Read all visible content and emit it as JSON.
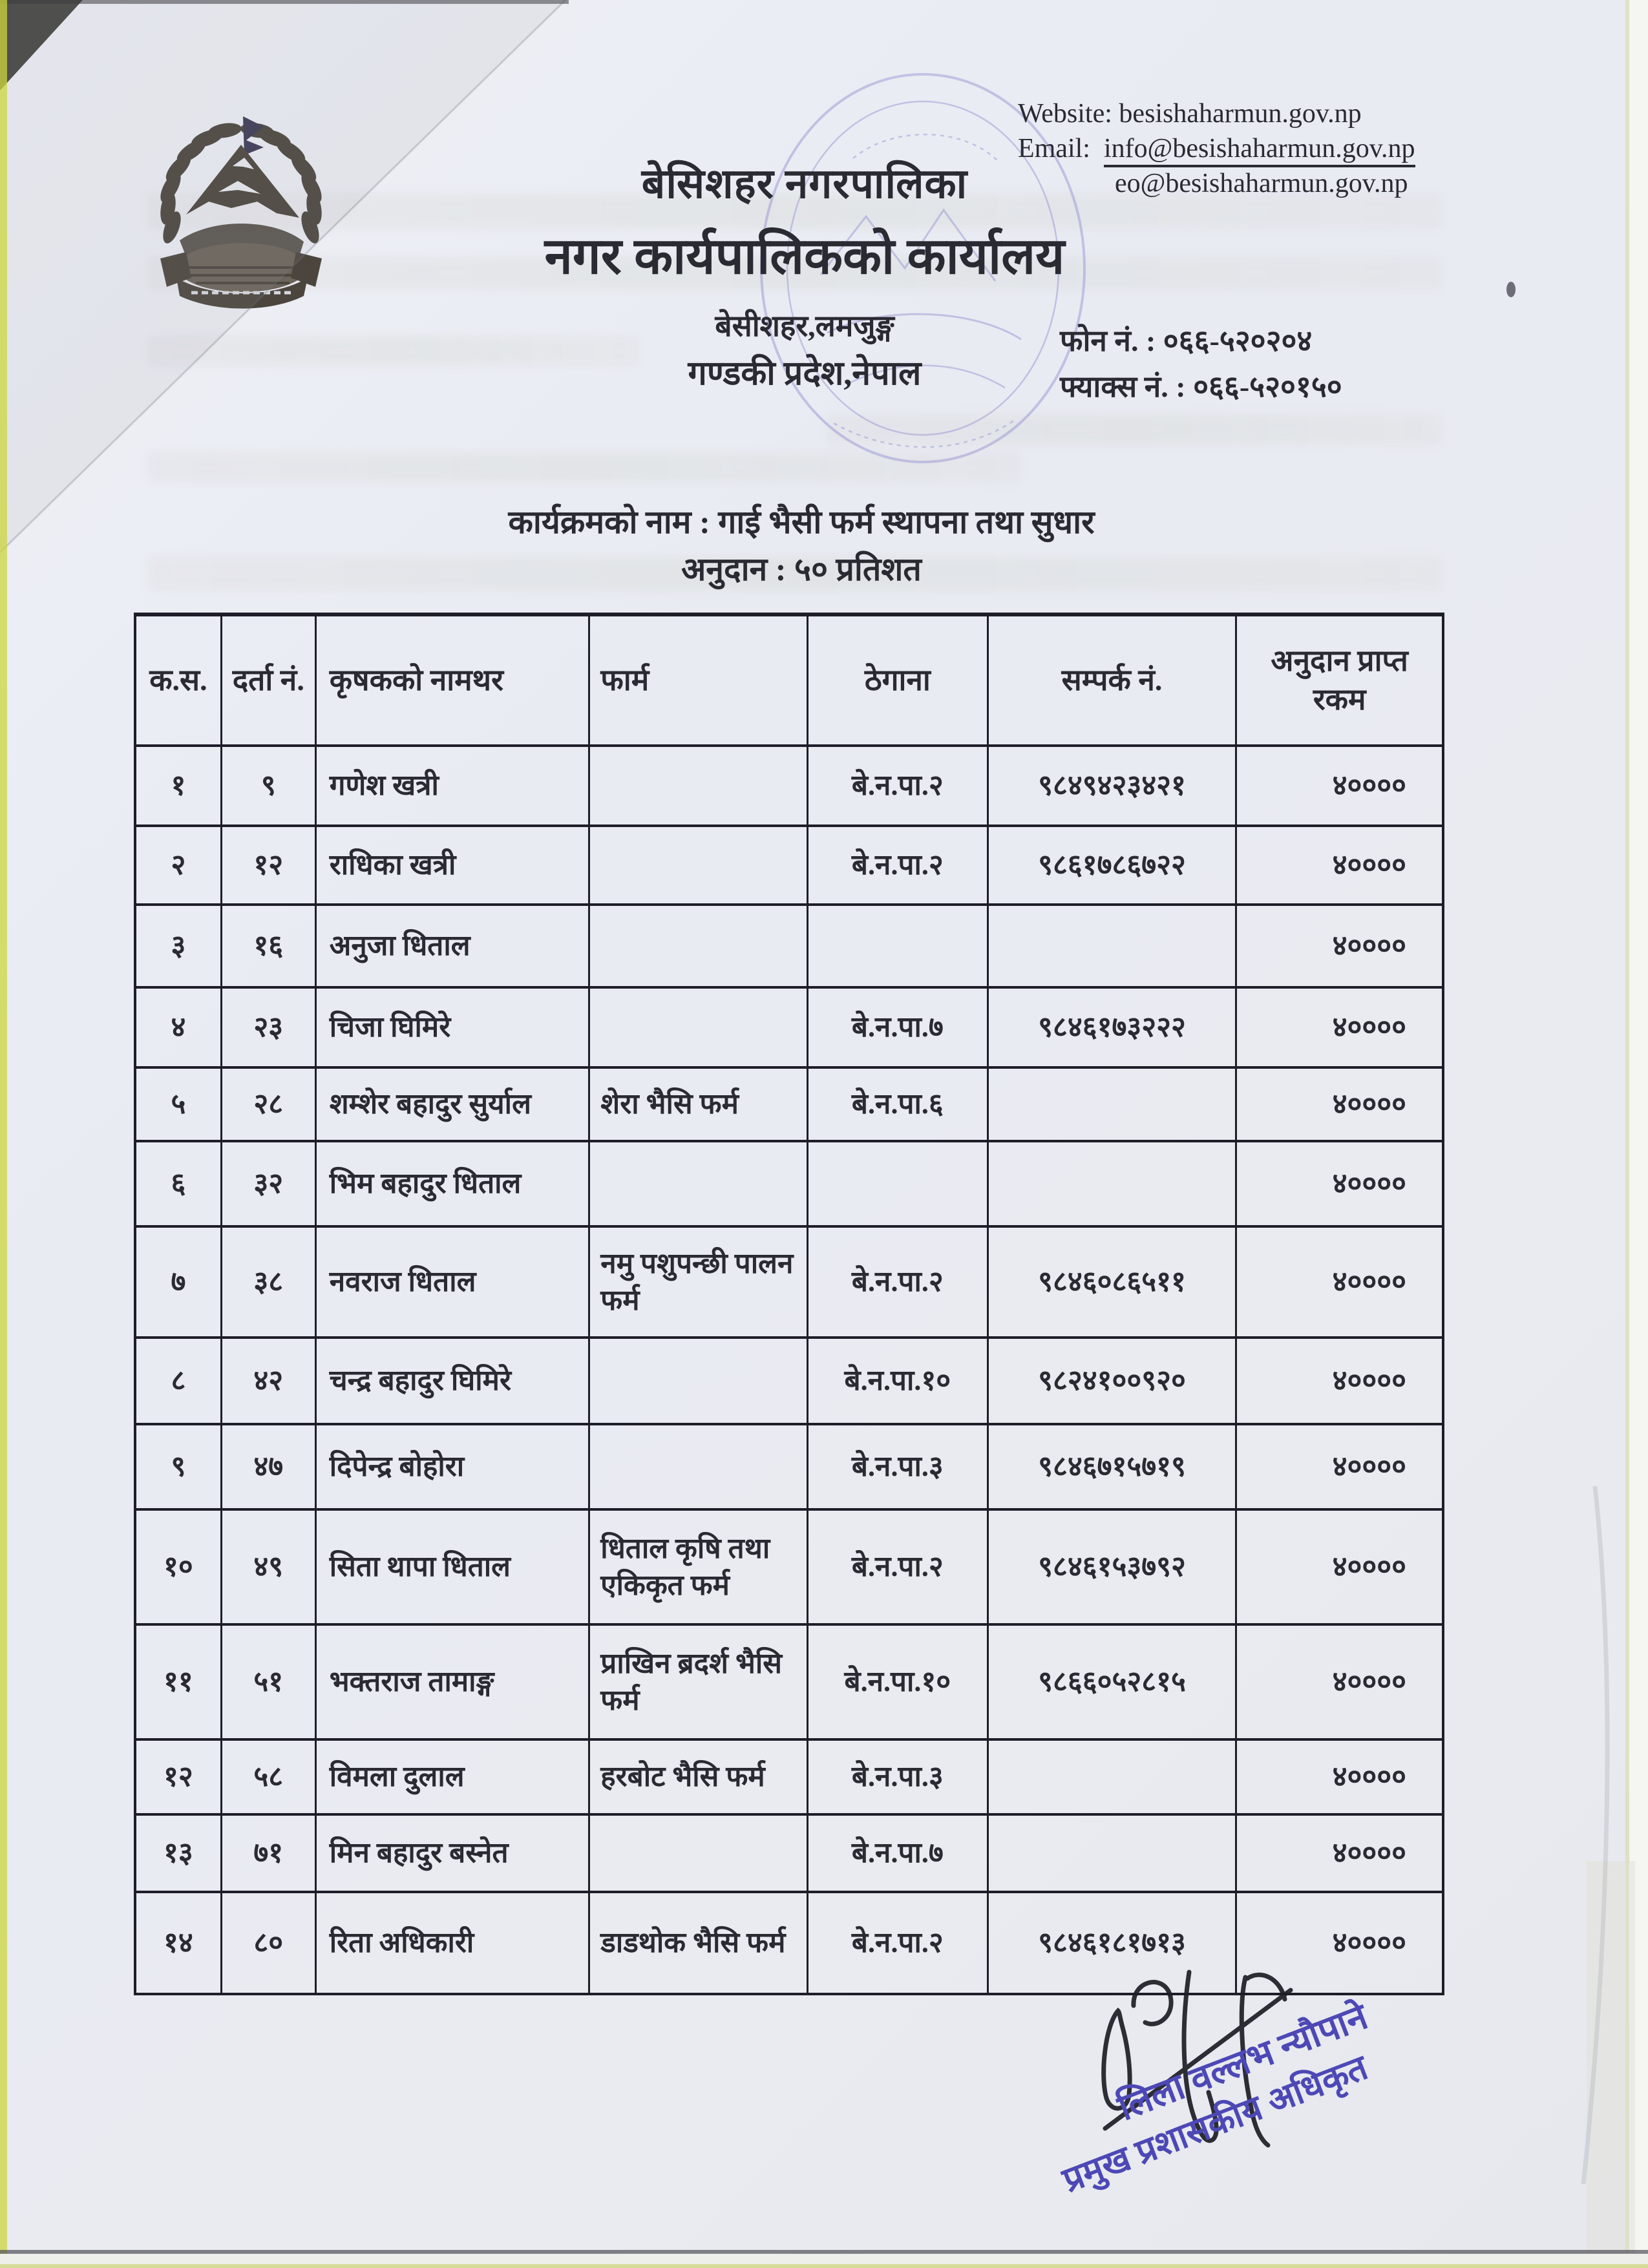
{
  "header": {
    "website_label": "Website:",
    "website": "besishaharmun.gov.np",
    "email_label": "Email:",
    "email1": "info@besishaharmun.gov.np",
    "email2": "eo@besishaharmun.gov.np",
    "municipality_name": "बेसिशहर नगरपालिका",
    "office_name": "नगर कार्यपालिकको कार्यालय",
    "address_line1": "बेसीशहर,लमजुङ्ग",
    "address_line2": "गण्डकी प्रदेश,नेपाल",
    "phone_line": "फोन नं. : ०६६-५२०२०४",
    "fax_line": "फ्याक्स नं. : ०६६-५२०१५०"
  },
  "program": {
    "line1": "कार्यक्रमको नाम : गाई भैसी फर्म स्थापना तथा सुधार",
    "line2": "अनुदान : ५० प्रतिशत"
  },
  "table": {
    "headers": [
      "क.स.",
      "दर्ता नं.",
      "कृषकको नामथर",
      "फार्म",
      "ठेगाना",
      "सम्पर्क नं.",
      "अनुदान प्राप्त रकम"
    ],
    "rows": [
      [
        "१",
        "९",
        "गणेश खत्री",
        "",
        "बे.न.पा.२",
        "९८४९४२३४२१",
        "४००००"
      ],
      [
        "२",
        "१२",
        "राधिका खत्री",
        "",
        "बे.न.पा.२",
        "९८६१७८६७२२",
        "४००००"
      ],
      [
        "३",
        "१६",
        "अनुजा धिताल",
        "",
        "",
        "",
        "४००००"
      ],
      [
        "४",
        "२३",
        "चिजा घिमिरे",
        "",
        "बे.न.पा.७",
        "९८४६१७३२२२",
        "४००००"
      ],
      [
        "५",
        "२८",
        "शम्शेर बहादुर सुर्याल",
        "शेरा भैसि फर्म",
        "बे.न.पा.६",
        "",
        "४००००"
      ],
      [
        "६",
        "३२",
        "भिम बहादुर धिताल",
        "",
        "",
        "",
        "४००००"
      ],
      [
        "७",
        "३८",
        "नवराज धिताल",
        "नमु पशुपन्छी पालन फर्म",
        "बे.न.पा.२",
        "९८४६०८६५११",
        "४००००"
      ],
      [
        "८",
        "४२",
        "चन्द्र बहादुर घिमिरे",
        "",
        "बे.न.पा.१०",
        "९८२४१००९२०",
        "४००००"
      ],
      [
        "९",
        "४७",
        "दिपेन्द्र बोहोरा",
        "",
        "बे.न.पा.३",
        "९८४६७१५७१९",
        "४००००"
      ],
      [
        "१०",
        "४९",
        "सिता थापा धिताल",
        "धिताल कृषि तथा एकिकृत फर्म",
        "बे.न.पा.२",
        "९८४६१५३७९२",
        "४००००"
      ],
      [
        "११",
        "५१",
        "भक्तराज तामाङ्ग",
        "प्राखिन ब्रदर्श भैसि फर्म",
        "बे.न.पा.१०",
        "९८६६०५२८१५",
        "४००००"
      ],
      [
        "१२",
        "५८",
        "विमला दुलाल",
        "हरबोट भैसि फर्म",
        "बे.न.पा.३",
        "",
        "४००००"
      ],
      [
        "१३",
        "७१",
        "मिन बहादुर बस्नेत",
        "",
        "बे.न.पा.७",
        "",
        "४००००"
      ],
      [
        "१४",
        "८०",
        "रिता अधिकारी",
        "डाडथोक भैसि फर्म",
        "बे.न.पा.२",
        "९८४६१८१७१३",
        "४००००"
      ]
    ]
  },
  "signature": {
    "name": "लिला वल्लभ न्यौपाने",
    "title": "प्रमुख प्रशासकीय अधिकृत"
  },
  "colors": {
    "ink": "#2a2a33",
    "table_line": "#1e1e29",
    "stamp_blue": "#4d48b6",
    "seal_violet": "#8b87cf"
  }
}
